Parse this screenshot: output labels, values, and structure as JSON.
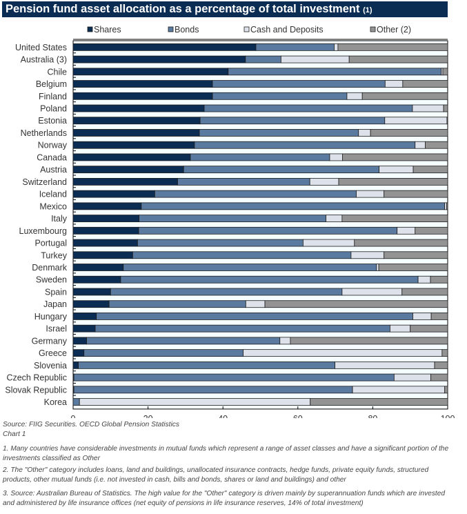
{
  "header": {
    "title": "Pension fund asset allocation as a percentage of total investment",
    "title_note": "(1)"
  },
  "chart_data": {
    "type": "bar",
    "orientation": "horizontal",
    "stacked": true,
    "title": "Pension fund asset allocation as a percentage of total investment (1)",
    "xlabel": "",
    "ylabel": "",
    "xlim": [
      0,
      100
    ],
    "xticks": [
      "0",
      "20",
      "40",
      "60",
      "80",
      "100"
    ],
    "grid": false,
    "legend_position": "top",
    "categories": [
      "United States",
      "Australia (3)",
      "Chile",
      "Belgium",
      "Finland",
      "Poland",
      "Estonia",
      "Netherlands",
      "Norway",
      "Canada",
      "Austria",
      "Switzerland",
      "Iceland",
      "Mexico",
      "Italy",
      "Luxembourg",
      "Portugal",
      "Turkey",
      "Denmark",
      "Sweden",
      "Spain",
      "Japan",
      "Hungary",
      "Israel",
      "Germany",
      "Greece",
      "Slovenia",
      "Czech Republic",
      "Slovak Republic",
      "Korea"
    ],
    "series": [
      {
        "name": "Shares",
        "color": "#0c2d53",
        "values": [
          48.8,
          46.0,
          41.4,
          37.2,
          37.2,
          35.0,
          33.9,
          33.7,
          32.4,
          31.3,
          29.5,
          27.9,
          21.8,
          18.2,
          17.6,
          17.5,
          17.2,
          15.9,
          13.4,
          12.7,
          10.0,
          9.6,
          6.2,
          5.9,
          3.6,
          2.9,
          1.4,
          0.2,
          0.2,
          0.0
        ]
      },
      {
        "name": "Bonds",
        "color": "#5b7aa0",
        "values": [
          20.9,
          9.5,
          56.9,
          46.1,
          35.9,
          55.6,
          49.3,
          42.5,
          58.9,
          37.2,
          52.2,
          35.3,
          53.8,
          81.0,
          49.9,
          69.0,
          44.2,
          58.3,
          67.6,
          79.4,
          61.8,
          36.5,
          84.5,
          78.7,
          51.6,
          42.5,
          68.5,
          85.5,
          74.4,
          1.7
        ]
      },
      {
        "name": "Cash and Deposits",
        "color": "#dde2ea",
        "values": [
          1.0,
          18.2,
          0.4,
          4.7,
          4.1,
          8.3,
          16.6,
          3.2,
          2.7,
          3.4,
          9.1,
          7.7,
          7.4,
          0.5,
          4.3,
          4.8,
          13.7,
          8.8,
          0.6,
          3.3,
          16.0,
          5.1,
          4.9,
          5.4,
          2.8,
          53.1,
          26.6,
          9.8,
          24.6,
          61.6
        ]
      },
      {
        "name": "Other (2)",
        "color": "#939393",
        "values": [
          29.3,
          26.3,
          1.3,
          12.0,
          22.8,
          1.1,
          0.2,
          20.6,
          6.0,
          28.1,
          9.2,
          29.1,
          17.0,
          0.3,
          28.2,
          8.7,
          24.9,
          17.0,
          18.4,
          4.6,
          12.2,
          48.8,
          4.4,
          10.0,
          42.0,
          1.5,
          3.5,
          4.5,
          0.8,
          36.7
        ]
      }
    ]
  },
  "footer": {
    "source": "Source: FIIG Securities. OECD Global Pension Statistics",
    "chart_label": "Chart 1",
    "notes": [
      "1. Many countries have considerable investments in mutual funds which represent a range of asset classes and have a significant portion of the investments classified as Other",
      "2. The \"Other\" category includes loans, land and buildings, unallocated insurance contracts, hedge funds, private equity funds, structured products, other mutual funds (i.e. not invested in cash, bills and bonds, shares or land and buildings) and other",
      "3. Source: Australian Bureau of Statistics. The high value for the \"Other\" category is driven mainly by superannuation funds which are invested and administered by life insurance offices (net equity of pensions in life insurance reserves, 14% of total investment)"
    ]
  }
}
